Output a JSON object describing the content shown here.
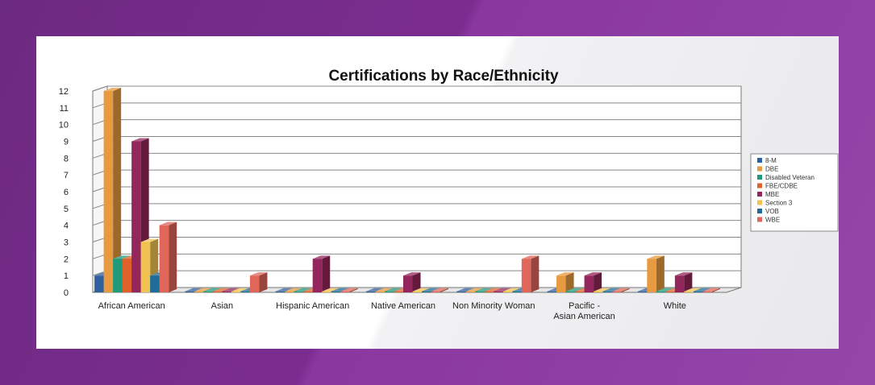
{
  "chart_data": {
    "type": "bar",
    "title": "Certifications by Race/Ethnicity",
    "xlabel": "",
    "ylabel": "",
    "ylim": [
      0,
      12
    ],
    "yticks": [
      0,
      1,
      2,
      3,
      4,
      5,
      6,
      7,
      8,
      9,
      10,
      11,
      12
    ],
    "grid": true,
    "legend_position": "right",
    "categories": [
      "African American",
      "Asian",
      "Hispanic American",
      "Native American",
      "Non Minority Woman",
      "Pacific - Asian American",
      "White"
    ],
    "series": [
      {
        "name": "8-M",
        "color": "#2e5f9e",
        "values": [
          1,
          0,
          0,
          0,
          0,
          0,
          0
        ]
      },
      {
        "name": "DBE",
        "color": "#e79a3f",
        "values": [
          12,
          0,
          0,
          0,
          0,
          1,
          2
        ]
      },
      {
        "name": "Disabled Veteran",
        "color": "#1f9a7b",
        "values": [
          2,
          0,
          0,
          0,
          0,
          0,
          0
        ]
      },
      {
        "name": "FBE/CDBE",
        "color": "#e0622a",
        "values": [
          2,
          0,
          0,
          0,
          0,
          0,
          0
        ]
      },
      {
        "name": "MBE",
        "color": "#93265a",
        "values": [
          9,
          0,
          2,
          1,
          0,
          1,
          1
        ]
      },
      {
        "name": "Section 3",
        "color": "#f2c250",
        "values": [
          3,
          0,
          0,
          0,
          0,
          0,
          0
        ]
      },
      {
        "name": "VOB",
        "color": "#1d6c9a",
        "values": [
          1,
          0,
          0,
          0,
          0,
          0,
          0
        ]
      },
      {
        "name": "WBE",
        "color": "#e0665a",
        "values": [
          4,
          1,
          0,
          0,
          2,
          0,
          0
        ]
      }
    ]
  }
}
